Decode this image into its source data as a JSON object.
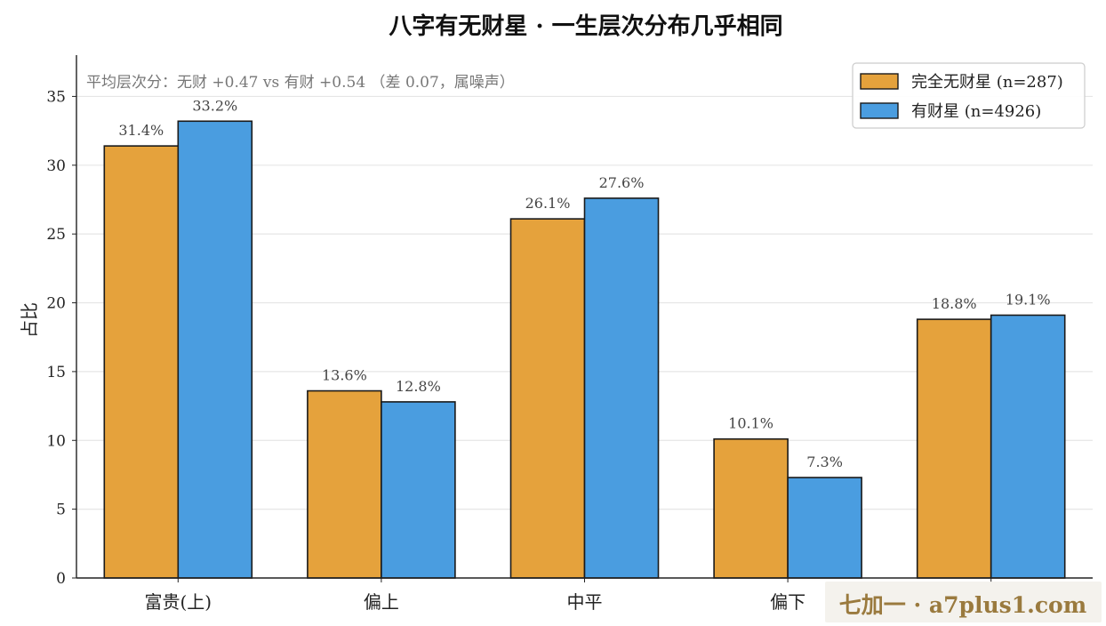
{
  "chart_data": {
    "type": "bar",
    "title": "八字有无财星 · 一生层次分布几乎相同",
    "ylabel": "占比",
    "xlabel": "",
    "ylim": [
      0,
      38
    ],
    "yticks": [
      0,
      5,
      10,
      15,
      20,
      25,
      30,
      35
    ],
    "grid": "horizontal",
    "legend_position": "top-right",
    "categories": [
      "富贵(上)",
      "偏上",
      "中平",
      "偏下",
      ""
    ],
    "series": [
      {
        "name": "完全无财星 (n=287)",
        "color": "#E5A23C",
        "values": [
          31.4,
          13.6,
          26.1,
          10.1,
          18.8
        ],
        "labels": [
          "31.4%",
          "13.6%",
          "26.1%",
          "10.1%",
          "18.8%"
        ]
      },
      {
        "name": "有财星 (n=4926)",
        "color": "#4A9DE0",
        "values": [
          33.2,
          12.8,
          27.6,
          7.3,
          19.1
        ],
        "labels": [
          "33.2%",
          "12.8%",
          "27.6%",
          "7.3%",
          "19.1%"
        ]
      }
    ],
    "annotation": "平均层次分：无财 +0.47  vs  有财 +0.54  （差 0.07，属噪声）"
  },
  "watermark": "七加一 · a7plus1.com"
}
